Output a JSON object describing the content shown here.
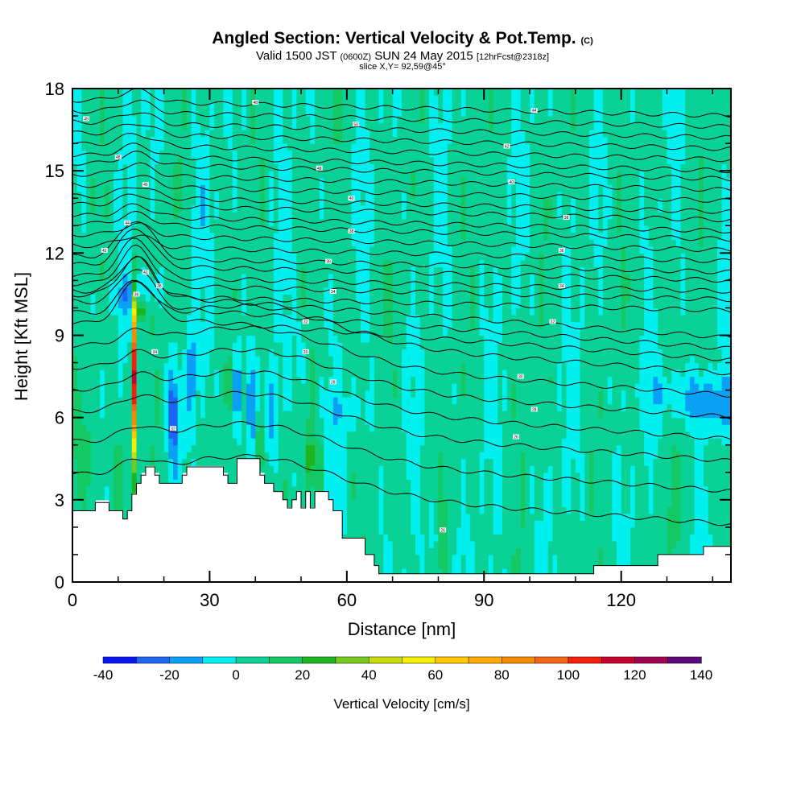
{
  "header": {
    "title": "Angled Section: Vertical Velocity & Pot.Temp.",
    "title_unit": "(C)",
    "valid_prefix": "Valid 1500 JST",
    "valid_utc": "(0600Z)",
    "valid_date": "SUN 24 May 2015",
    "forecast": "[12hrFcst@2318z]",
    "slice": "slice X,Y= 92,59@45°"
  },
  "chart_data": {
    "type": "heatmap",
    "xlabel": "Distance [nm]",
    "ylabel": "Height [Kft MSL]",
    "xlim": [
      0,
      144
    ],
    "ylim": [
      0,
      18
    ],
    "x_ticks": [
      0,
      30,
      60,
      90,
      120
    ],
    "y_ticks": [
      0,
      3,
      6,
      9,
      12,
      15,
      18
    ],
    "colorbar": {
      "title": "Vertical Velocity [cm/s]",
      "levels": [
        -40,
        -30,
        -20,
        -10,
        0,
        10,
        20,
        30,
        40,
        50,
        60,
        70,
        80,
        90,
        100,
        110,
        120,
        130,
        140
      ],
      "tick_labels": [
        "-40",
        "-20",
        "0",
        "20",
        "40",
        "60",
        "80",
        "100",
        "120",
        "140"
      ],
      "colors": [
        "#0a14f0",
        "#1e64f5",
        "#0aa0f5",
        "#00f0f0",
        "#0ad296",
        "#14c864",
        "#1eb41e",
        "#78c81e",
        "#c8dc0a",
        "#f5f000",
        "#ffc800",
        "#ffaa00",
        "#f58c00",
        "#f56414",
        "#f51e0a",
        "#c8002d",
        "#a00050",
        "#5a0a78"
      ]
    },
    "terrain": [
      [
        0,
        2.6
      ],
      [
        5,
        2.9
      ],
      [
        8,
        2.6
      ],
      [
        10,
        2.6
      ],
      [
        11,
        2.3
      ],
      [
        12,
        2.6
      ],
      [
        13,
        3.2
      ],
      [
        14,
        3.6
      ],
      [
        15,
        3.9
      ],
      [
        16,
        4.2
      ],
      [
        18,
        3.9
      ],
      [
        19,
        3.6
      ],
      [
        24,
        3.9
      ],
      [
        25,
        4.2
      ],
      [
        33,
        3.9
      ],
      [
        34,
        3.6
      ],
      [
        36,
        4.5
      ],
      [
        41,
        3.9
      ],
      [
        42,
        3.6
      ],
      [
        44,
        3.3
      ],
      [
        46,
        3.0
      ],
      [
        47,
        2.7
      ],
      [
        48,
        3.0
      ],
      [
        49,
        3.3
      ],
      [
        50,
        2.7
      ],
      [
        51,
        3.3
      ],
      [
        52,
        2.7
      ],
      [
        53,
        3.3
      ],
      [
        56,
        3.0
      ],
      [
        57,
        2.6
      ],
      [
        59,
        1.6
      ],
      [
        64,
        1.0
      ],
      [
        66,
        0.6
      ],
      [
        67,
        0.3
      ],
      [
        112,
        0.3
      ],
      [
        114,
        0.6
      ],
      [
        128,
        1.0
      ],
      [
        138,
        1.3
      ],
      [
        144,
        1.3
      ]
    ],
    "isentropes_base": [
      3.0,
      4.2,
      5.3,
      6.1,
      6.9,
      7.7,
      8.5,
      9.0,
      9.4,
      9.8,
      10.2,
      10.6,
      10.9,
      11.3,
      11.6,
      12.0,
      12.4,
      12.8,
      13.1,
      13.5,
      13.8,
      14.2,
      14.6,
      15.0,
      15.3,
      15.7,
      16.1,
      16.5,
      16.9,
      17.3
    ],
    "isentrope_labels": [
      {
        "x": 3,
        "y": 16.9,
        "text": "49"
      },
      {
        "x": 10,
        "y": 15.5,
        "text": "48"
      },
      {
        "x": 16,
        "y": 14.5,
        "text": "46"
      },
      {
        "x": 12,
        "y": 13.1,
        "text": "44"
      },
      {
        "x": 7,
        "y": 12.1,
        "text": "42"
      },
      {
        "x": 16,
        "y": 11.3,
        "text": "41"
      },
      {
        "x": 19,
        "y": 10.8,
        "text": "38"
      },
      {
        "x": 14,
        "y": 10.5,
        "text": "36"
      },
      {
        "x": 18,
        "y": 8.4,
        "text": "34"
      },
      {
        "x": 22,
        "y": 5.6,
        "text": "32"
      },
      {
        "x": 40,
        "y": 17.5,
        "text": "48"
      },
      {
        "x": 62,
        "y": 16.7,
        "text": "50"
      },
      {
        "x": 54,
        "y": 15.1,
        "text": "48"
      },
      {
        "x": 61,
        "y": 14.0,
        "text": "40"
      },
      {
        "x": 61,
        "y": 12.8,
        "text": "38"
      },
      {
        "x": 56,
        "y": 11.7,
        "text": "36"
      },
      {
        "x": 57,
        "y": 10.6,
        "text": "34"
      },
      {
        "x": 51,
        "y": 9.5,
        "text": "32"
      },
      {
        "x": 51,
        "y": 8.4,
        "text": "30"
      },
      {
        "x": 57,
        "y": 7.3,
        "text": "28"
      },
      {
        "x": 101,
        "y": 17.2,
        "text": "44"
      },
      {
        "x": 95,
        "y": 15.9,
        "text": "42"
      },
      {
        "x": 96,
        "y": 14.6,
        "text": "40"
      },
      {
        "x": 108,
        "y": 13.3,
        "text": "38"
      },
      {
        "x": 107,
        "y": 12.1,
        "text": "36"
      },
      {
        "x": 107,
        "y": 10.8,
        "text": "34"
      },
      {
        "x": 105,
        "y": 9.5,
        "text": "32"
      },
      {
        "x": 98,
        "y": 7.5,
        "text": "30"
      },
      {
        "x": 101,
        "y": 6.3,
        "text": "28"
      },
      {
        "x": 97,
        "y": 5.3,
        "text": "26"
      },
      {
        "x": 81,
        "y": 1.9,
        "text": "26"
      }
    ]
  }
}
